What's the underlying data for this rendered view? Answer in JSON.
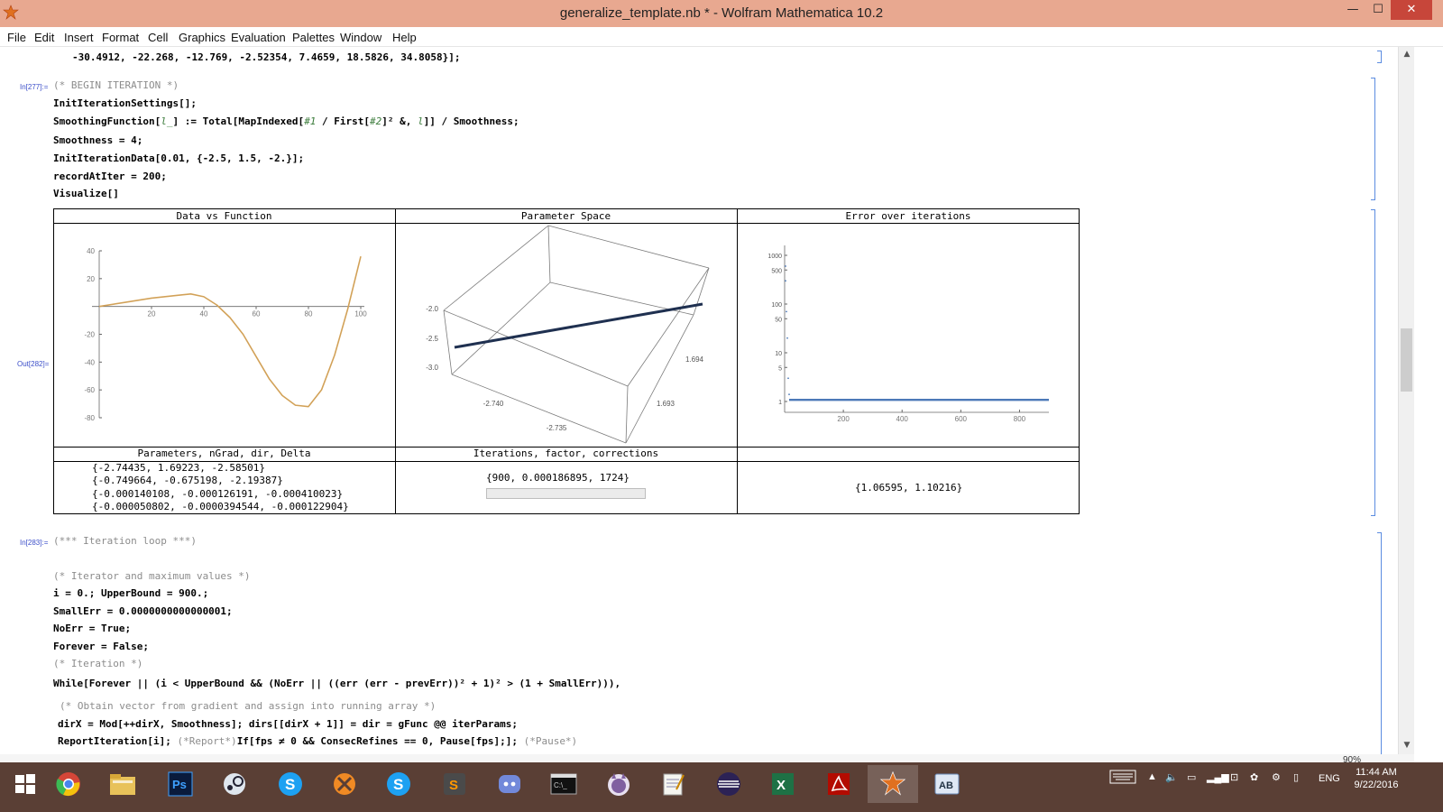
{
  "window": {
    "title": "generalize_template.nb * - Wolfram Mathematica 10.2",
    "minimize": "—",
    "maximize": "☐",
    "close": "✕"
  },
  "menu": [
    "File",
    "Edit",
    "Insert",
    "Format",
    "Cell",
    "Graphics",
    "Evaluation",
    "Palettes",
    "Window",
    "Help"
  ],
  "cells": {
    "top_line": "-30.4912, -22.268, -12.769, -2.52354, 7.4659, 18.5826, 34.8058}];",
    "in277_label": "In[277]:=",
    "in277": {
      "comment": "(* BEGIN ITERATION *)",
      "l1": "InitIterationSettings[];",
      "l2a": "SmoothingFunction[",
      "l2b": "l_",
      "l2c": "] := Total",
      "l2d": "[MapIndexed[",
      "l2e": "#1",
      "l2f": " / First[",
      "l2g": "#2",
      "l2h": "]",
      "l2i": "²",
      "l2j": " &, ",
      "l2k": "l",
      "l2l": "]] / Smoothness;",
      "l3": "Smoothness = 4;",
      "l4": "InitIterationData[0.01, {-2.5, 1.5, -2.}];",
      "l5": "recordAtIter = 200;",
      "l6": "Visualize[]"
    },
    "out282_label": "Out[282]=",
    "in283_label": "In[283]:=",
    "in283": {
      "c1": "(*** Iteration loop ***)",
      "c2": "(* Iterator and maximum values *)",
      "l1": "i = 0.; UpperBound = 900.;",
      "l2": "SmallErr = 0.0000000000000001;",
      "l3": "NoErr = True;",
      "l4": "Forever = False;",
      "c3": "(* Iteration *)",
      "l5": "While[Forever || (i < UpperBound && (NoErr || ((err (err - prevErr))² + 1)² > (1 + SmallErr))),",
      "c4": "(* Obtain vector from gradient and assign into running array *)",
      "l6": "dirX = Mod[++dirX, Smoothness]; dirs[[dirX + 1]] = dir = gFunc @@ iterParams;",
      "l7a": "ReportIteration[i]; ",
      "l7b": "(*Report*)",
      "l7c": "If[fps ≠ 0 && ConsecRefines == 0, Pause[fps];]; ",
      "l7d": "(*Pause*)"
    }
  },
  "grid": {
    "headers": [
      "Data vs Function",
      "Parameter Space",
      "Error over iterations"
    ],
    "row2_headers": [
      "Parameters, nGrad, dir, Delta",
      "Iterations, factor, corrections",
      ""
    ],
    "params": [
      "{-2.74435, 1.69223, -2.58501}",
      "{-0.749664, -0.675198, -2.19387}",
      "{-0.000140108, -0.000126191, -0.000410023}",
      "{-0.000050802, -0.0000394544, -0.000122904}"
    ],
    "iterations": "{900, 0.000186895, 1724}",
    "progress": 0.0,
    "errors": "{1.06595, 1.10216}"
  },
  "chart_data": [
    {
      "type": "line",
      "title": "Data vs Function",
      "x_ticks": [
        20,
        40,
        60,
        80,
        100
      ],
      "y_ticks": [
        40,
        20,
        -20,
        -40,
        -60,
        -80
      ],
      "xlim": [
        0,
        100
      ],
      "ylim": [
        -80,
        40
      ],
      "x": [
        0,
        10,
        20,
        30,
        35,
        40,
        45,
        50,
        55,
        60,
        65,
        70,
        75,
        80,
        85,
        90,
        95,
        100
      ],
      "y": [
        0,
        3,
        6,
        8,
        9,
        7,
        1,
        -8,
        -20,
        -36,
        -52,
        -64,
        -71,
        -72,
        -60,
        -35,
        -2,
        36
      ],
      "color": "#d7a75a"
    },
    {
      "type": "scatter",
      "title": "Parameter Space",
      "z_ticks": [
        -2.0,
        -2.5,
        -3.0
      ],
      "x_ticks": [
        -2.74,
        -2.735
      ],
      "y_ticks": [
        1.693,
        1.694
      ],
      "color": "#1f3050"
    },
    {
      "type": "scatter",
      "title": "Error over iterations",
      "x_ticks": [
        200,
        400,
        600,
        800
      ],
      "y_ticks": [
        1000,
        500,
        100,
        50,
        10,
        5,
        1
      ],
      "y_scale": "log",
      "color": "#4c79b8"
    }
  ],
  "status": {
    "zoom": "90%"
  },
  "taskbar": {
    "apps": [
      "windows-start",
      "chrome",
      "file-explorer",
      "photoshop",
      "steam",
      "skype",
      "blender",
      "skype-2",
      "sublime-text",
      "discord",
      "command-prompt",
      "cat-app",
      "notepad",
      "eclipse",
      "excel",
      "acrobat",
      "mathematica",
      "lingoes"
    ],
    "lang": "ENG",
    "time": "11:44 AM",
    "date": "9/22/2016"
  },
  "colors": {
    "titlebar": "#e8a890",
    "taskbar": "#5a3f35",
    "cell_label": "#3b4ec9",
    "comment": "#8c8c8c"
  }
}
